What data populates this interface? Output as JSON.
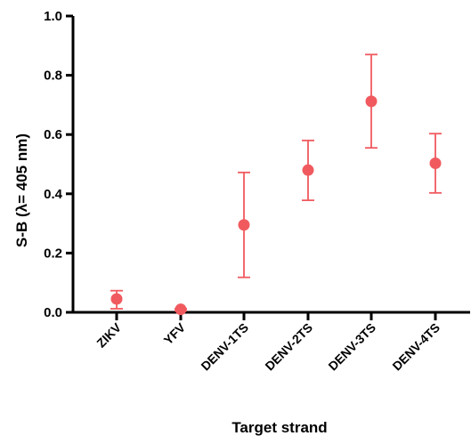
{
  "chart_data": {
    "type": "scatter",
    "title": "",
    "xlabel": "Target strand",
    "ylabel": "S-B (λ= 405 nm)",
    "categories": [
      "ZIKV",
      "YFV",
      "DENV-1TS",
      "DENV-2TS",
      "DENV-3TS",
      "DENV-4TS"
    ],
    "series": [
      {
        "values": [
          0.045,
          0.01,
          0.295,
          0.48,
          0.712,
          0.503
        ],
        "error_low": [
          0.012,
          0.005,
          0.118,
          0.378,
          0.555,
          0.403
        ],
        "error_high": [
          0.073,
          0.012,
          0.472,
          0.58,
          0.87,
          0.603
        ]
      }
    ],
    "ylim": [
      0,
      1.0
    ],
    "yticks": [
      "0.0",
      "0.2",
      "0.4",
      "0.6",
      "0.8",
      "1.0"
    ],
    "grid": false,
    "legend": "none",
    "colors": {
      "marker": "#f05a5f",
      "axis": "#000000"
    }
  }
}
